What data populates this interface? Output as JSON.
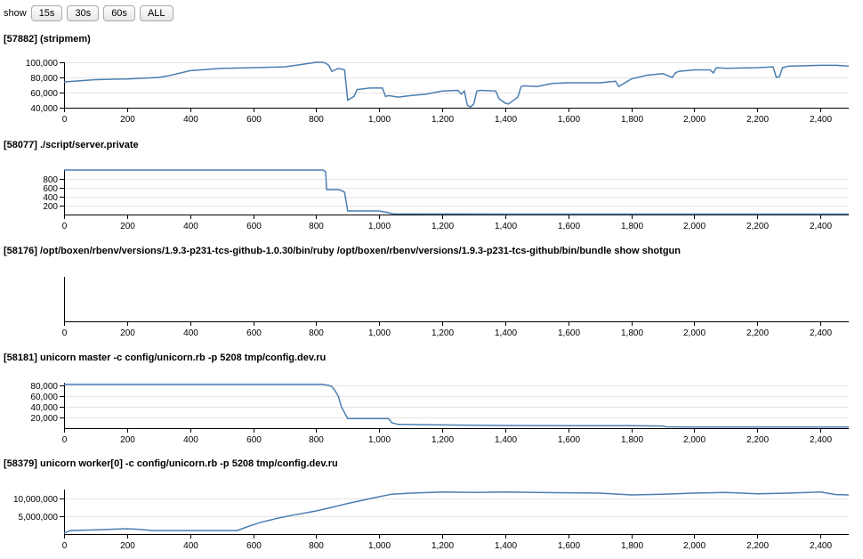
{
  "toolbar": {
    "label": "show",
    "buttons": [
      "15s",
      "30s",
      "60s",
      "ALL"
    ]
  },
  "chart_data": [
    {
      "type": "line",
      "title": "[57882] (stripmem)",
      "xlim": [
        0,
        2490
      ],
      "ylim": [
        40000,
        100000
      ],
      "xticks": [
        0,
        200,
        400,
        600,
        800,
        1000,
        1200,
        1400,
        1600,
        1800,
        2000,
        2200,
        2400
      ],
      "yticks": [
        40000,
        60000,
        80000,
        100000
      ],
      "x": [
        0,
        30,
        100,
        200,
        300,
        330,
        400,
        500,
        600,
        700,
        750,
        800,
        820,
        830,
        840,
        850,
        860,
        870,
        890,
        900,
        920,
        930,
        950,
        970,
        1010,
        1020,
        1030,
        1060,
        1100,
        1150,
        1200,
        1250,
        1260,
        1270,
        1280,
        1290,
        1300,
        1310,
        1320,
        1370,
        1380,
        1390,
        1400,
        1410,
        1420,
        1440,
        1450,
        1460,
        1500,
        1550,
        1600,
        1700,
        1750,
        1760,
        1800,
        1850,
        1900,
        1930,
        1940,
        1950,
        2000,
        2050,
        2060,
        2070,
        2100,
        2200,
        2250,
        2260,
        2270,
        2280,
        2300,
        2400,
        2450,
        2490
      ],
      "y": [
        74000,
        75000,
        77000,
        78000,
        80000,
        82000,
        89000,
        92000,
        93000,
        94000,
        97000,
        100000,
        100000,
        99000,
        96000,
        88000,
        90000,
        92000,
        90000,
        50000,
        55000,
        64000,
        65000,
        66000,
        66000,
        55000,
        56000,
        54000,
        56000,
        58000,
        62000,
        63000,
        58000,
        62000,
        43000,
        41000,
        45000,
        62000,
        63000,
        62000,
        52000,
        49000,
        46000,
        45000,
        48000,
        54000,
        68000,
        69000,
        68000,
        72000,
        73000,
        73000,
        75000,
        68000,
        78000,
        83000,
        85000,
        80000,
        86000,
        88000,
        90000,
        90000,
        86000,
        93000,
        92000,
        93000,
        94000,
        80000,
        81000,
        93000,
        95000,
        96000,
        96000,
        95000
      ]
    },
    {
      "type": "line",
      "title": "[58077] ./script/server.private",
      "xlim": [
        0,
        2490
      ],
      "ylim": [
        0,
        1000
      ],
      "xticks": [
        0,
        200,
        400,
        600,
        800,
        1000,
        1200,
        1400,
        1600,
        1800,
        2000,
        2200,
        2400
      ],
      "yticks": [
        200,
        400,
        600,
        800
      ],
      "x": [
        0,
        800,
        820,
        825,
        830,
        833,
        870,
        880,
        890,
        900,
        940,
        1000,
        1030,
        1040,
        1050,
        1200,
        1400,
        1600,
        1800,
        2000,
        2200,
        2490
      ],
      "y": [
        1000,
        1000,
        1000,
        990,
        960,
        560,
        560,
        540,
        500,
        80,
        80,
        80,
        40,
        20,
        15,
        12,
        10,
        10,
        10,
        10,
        10,
        10
      ]
    },
    {
      "type": "line",
      "title": "[58176] /opt/boxen/rbenv/versions/1.9.3-p231-tcs-github-1.0.30/bin/ruby /opt/boxen/rbenv/versions/1.9.3-p231-tcs-github/bin/bundle show shotgun",
      "xlim": [
        0,
        2490
      ],
      "ylim": [
        0,
        1
      ],
      "xticks": [
        0,
        200,
        400,
        600,
        800,
        1000,
        1200,
        1400,
        1600,
        1800,
        2000,
        2200,
        2400
      ],
      "yticks": [],
      "x": [],
      "y": []
    },
    {
      "type": "line",
      "title": "[58181] unicorn master -c config/unicorn.rb -p 5208 tmp/config.dev.ru",
      "xlim": [
        0,
        2490
      ],
      "ylim": [
        0,
        85000
      ],
      "xticks": [
        0,
        200,
        400,
        600,
        800,
        1000,
        1200,
        1400,
        1600,
        1800,
        2000,
        2200,
        2400
      ],
      "yticks": [
        20000,
        40000,
        60000,
        80000
      ],
      "x": [
        0,
        800,
        820,
        840,
        850,
        860,
        870,
        880,
        900,
        1000,
        1030,
        1040,
        1060,
        1200,
        1400,
        1600,
        1800,
        1900,
        1910,
        2000,
        2200,
        2490
      ],
      "y": [
        82000,
        82000,
        82000,
        80000,
        78000,
        70000,
        60000,
        40000,
        18000,
        18000,
        18000,
        10000,
        7000,
        6000,
        5000,
        4500,
        4500,
        4000,
        2500,
        2000,
        2000,
        2000
      ]
    },
    {
      "type": "line",
      "title": "[58379] unicorn worker[0] -c config/unicorn.rb -p 5208 tmp/config.dev.ru",
      "xlim": [
        0,
        2490
      ],
      "ylim": [
        0,
        12500000
      ],
      "xticks": [
        0,
        200,
        400,
        600,
        800,
        1000,
        1200,
        1400,
        1600,
        1800,
        2000,
        2200,
        2400
      ],
      "yticks": [
        5000000,
        10000000
      ],
      "x": [
        0,
        20,
        100,
        200,
        240,
        280,
        400,
        500,
        550,
        580,
        620,
        680,
        720,
        800,
        850,
        900,
        1000,
        1040,
        1100,
        1200,
        1300,
        1400,
        1500,
        1600,
        1700,
        1800,
        1900,
        2000,
        2100,
        2200,
        2300,
        2400,
        2450,
        2490
      ],
      "y": [
        300000,
        1000000,
        1200000,
        1500000,
        1300000,
        1000000,
        1000000,
        1000000,
        1000000,
        2000000,
        3200000,
        4500000,
        5200000,
        6500000,
        7500000,
        8600000,
        10500000,
        11200000,
        11500000,
        11800000,
        11700000,
        11800000,
        11700000,
        11600000,
        11500000,
        11000000,
        11200000,
        11500000,
        11700000,
        11300000,
        11500000,
        11800000,
        11100000,
        11000000
      ]
    }
  ]
}
